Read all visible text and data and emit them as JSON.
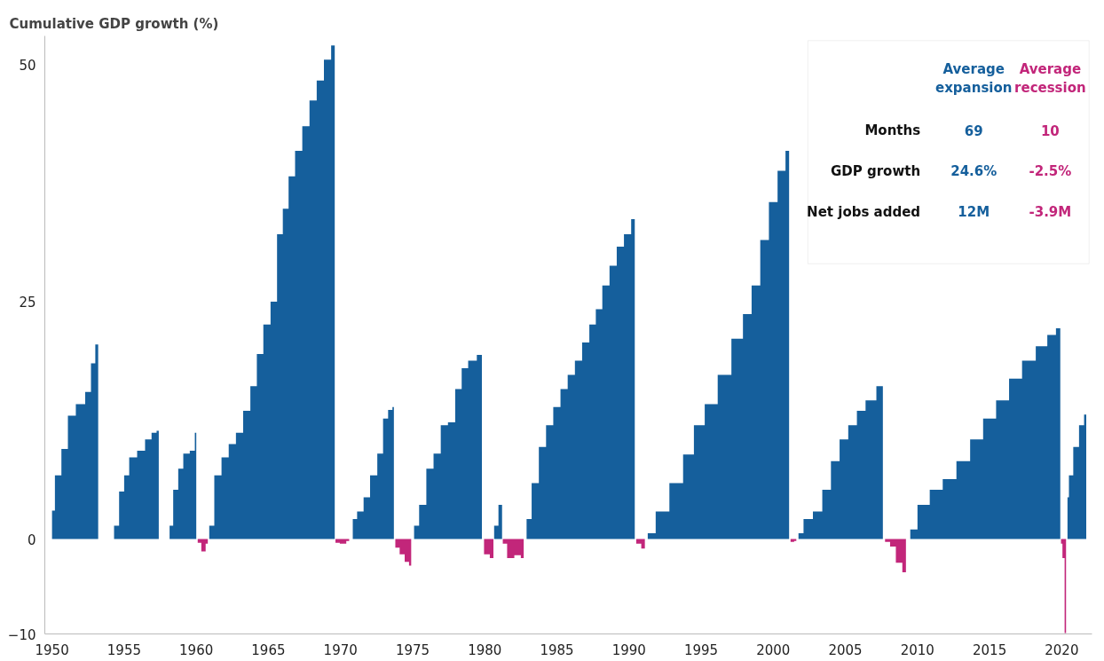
{
  "chart_data": {
    "type": "area",
    "ylabel": "Cumulative GDP growth (%)",
    "xlim": [
      1949.5,
      2022.1
    ],
    "ylim": [
      -10,
      53
    ],
    "xticks": [
      1950,
      1955,
      1960,
      1965,
      1970,
      1975,
      1980,
      1985,
      1990,
      1995,
      2000,
      2005,
      2010,
      2015,
      2020
    ],
    "yticks": [
      -10,
      0,
      25,
      50
    ],
    "grid": false,
    "annotations": [
      "Average\nexpansion",
      "Average\nrecession",
      "Months",
      "69",
      "10",
      "GDP growth",
      "24.6%",
      "-2.5%",
      "Net jobs added",
      "12M",
      "-3.9M"
    ],
    "series": [
      {
        "color": "#155f9c",
        "x": [
          1950.0,
          1950.4,
          1950.9,
          1951.3,
          1952.0,
          1952.6,
          1952.8,
          1953.2,
          1953.7,
          1954.2,
          1954.4,
          1954.9,
          1955.1,
          1955.6,
          1956.2,
          1956.7,
          1957.1,
          1957.4,
          1957.7,
          1958.1,
          1958.2,
          1958.6,
          1958.9,
          1959.3,
          1959.8,
          1960.0,
          1960.4,
          1960.8,
          1961.0,
          1961.5,
          1962.0,
          1962.5,
          1963.0,
          1963.5,
          1964.0,
          1964.4,
          1964.9,
          1965.4,
          1965.8,
          1966.2,
          1966.6,
          1967.1,
          1967.6,
          1968.1,
          1968.6,
          1969.1,
          1969.6,
          1970.2,
          1970.8,
          1970.9,
          1971.4,
          1971.8,
          1972.3,
          1972.8,
          1973.1,
          1973.5,
          1973.7,
          1974.4,
          1975.0,
          1975.2,
          1975.7,
          1976.2,
          1976.7,
          1977.2,
          1977.7,
          1978.2,
          1978.6,
          1979.1,
          1979.8,
          1980.2,
          1980.6,
          1980.7,
          1981.2,
          1982.0,
          1982.8,
          1983.0,
          1983.5,
          1984.0,
          1984.5,
          1985.0,
          1985.5,
          1986.0,
          1986.5,
          1987.0,
          1987.5,
          1987.9,
          1988.4,
          1988.9,
          1989.4,
          1989.9,
          1990.4,
          1990.8,
          1991.2,
          1991.4,
          1992.3,
          1993.3,
          1994.2,
          1994.8,
          1995.7,
          1996.6,
          1997.6,
          1998.2,
          1998.8,
          1999.4,
          2000.0,
          2000.6,
          2001.1,
          2001.4,
          2001.7,
          2001.8,
          2002.4,
          2003.1,
          2003.7,
          2004.3,
          2004.9,
          2005.5,
          2006.1,
          2006.7,
          2007.6,
          2008.5,
          2009.4,
          2009.6,
          2010.4,
          2011.3,
          2012.2,
          2013.2,
          2014.1,
          2015.0,
          2015.9,
          2016.8,
          2017.7,
          2018.7,
          2019.3,
          2019.9,
          2020.2,
          2020.4,
          2020.6,
          2021.0,
          2021.4,
          2021.7
        ],
        "values": [
          3,
          6.7,
          9.5,
          13,
          14.2,
          15.5,
          18.5,
          20.5,
          null,
          0,
          1.4,
          5,
          6.7,
          8.6,
          9.3,
          10.5,
          11.2,
          11.4,
          null,
          0,
          1.4,
          5.2,
          7.4,
          9,
          9.3,
          11.2,
          null,
          0,
          1.4,
          6.7,
          8.6,
          10,
          11.2,
          13.5,
          16.1,
          19.5,
          22.6,
          25,
          32.1,
          34.8,
          38.2,
          40.9,
          43.5,
          46.2,
          48.3,
          50.5,
          52,
          null,
          0,
          2.1,
          2.9,
          4.4,
          6.7,
          9,
          12.7,
          13.6,
          13.9,
          null,
          0,
          1.4,
          3.6,
          7.4,
          9,
          12,
          12.3,
          15.8,
          18,
          18.8,
          19.4,
          null,
          0,
          1.4,
          3.6,
          null,
          0,
          2.1,
          5.9,
          9.7,
          12,
          13.9,
          15.8,
          17.3,
          18.8,
          20.7,
          22.6,
          24.2,
          26.7,
          28.8,
          30.8,
          32.1,
          33.7,
          null,
          0,
          0.6,
          2.9,
          5.9,
          8.9,
          12,
          14.2,
          17.3,
          21.1,
          23.7,
          26.7,
          31.5,
          35.5,
          38.8,
          40.9,
          null,
          0,
          0.6,
          2.1,
          2.9,
          5.2,
          8.2,
          10.5,
          12,
          13.5,
          14.6,
          16.1,
          null,
          0,
          1,
          3.6,
          5.2,
          6.3,
          8.2,
          10.5,
          12.7,
          14.6,
          16.9,
          18.8,
          20.3,
          21.5,
          22.2,
          null,
          4.4,
          6.7,
          9.7,
          12,
          13.1
        ]
      },
      {
        "color": "#c2267a",
        "x": [
          1960.0,
          1960.2,
          1960.5,
          1960.8,
          1961.5,
          1969.6,
          1969.7,
          1970.2,
          1970.6,
          1971.0,
          1973.7,
          1973.9,
          1974.3,
          1974.6,
          1974.9,
          1975.1,
          1979.8,
          1980.1,
          1980.6,
          1980.7,
          1981.2,
          1981.3,
          1981.8,
          1982.3,
          1982.7,
          1983.0,
          1990.4,
          1990.6,
          1991.1,
          1991.3,
          2001.1,
          2001.3,
          2001.6,
          2001.8,
          2007.6,
          2007.9,
          2008.3,
          2008.7,
          2009.2,
          2009.4,
          2019.9,
          2020.0,
          2020.1,
          2020.3
        ],
        "values": [
          0,
          -0.4,
          -1.3,
          -0.5,
          null,
          0,
          -0.4,
          -0.5,
          -0.2,
          null,
          0,
          -0.9,
          -1.6,
          -2.4,
          -2.8,
          null,
          0,
          -1.6,
          -2,
          null,
          0,
          -0.5,
          -2,
          -1.7,
          -2,
          null,
          0,
          -0.5,
          -1,
          null,
          0,
          -0.3,
          -0.2,
          null,
          0,
          -0.3,
          -0.8,
          -2.5,
          -3.5,
          null,
          0,
          -0.5,
          -2,
          -9.9
        ]
      }
    ]
  }
}
